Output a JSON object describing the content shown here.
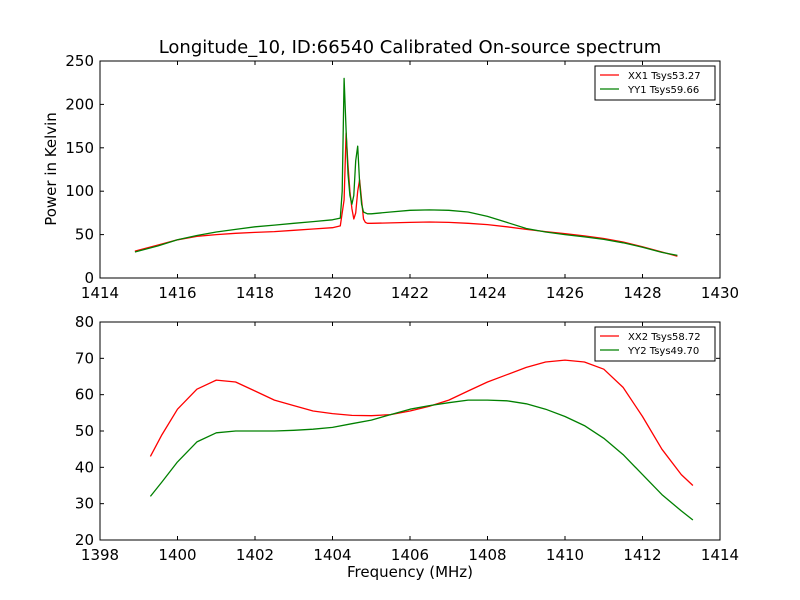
{
  "title": "Longitude_10, ID:66540 Calibrated On-source spectrum",
  "colors": {
    "red": "#ff0000",
    "green": "#008000"
  },
  "chart_data": [
    {
      "type": "line",
      "xlabel": "",
      "ylabel": "Power in Kelvin",
      "xlim": [
        1414,
        1430
      ],
      "ylim": [
        0,
        250
      ],
      "xticks": [
        "1414",
        "1416",
        "1418",
        "1420",
        "1422",
        "1424",
        "1426",
        "1428",
        "1430"
      ],
      "yticks": [
        "0",
        "50",
        "100",
        "150",
        "200",
        "250"
      ],
      "legend_position": "top-right",
      "series": [
        {
          "name": "XX1 Tsys53.27",
          "color": "#ff0000",
          "x": [
            1414.9,
            1415.5,
            1416.0,
            1416.5,
            1417.0,
            1417.5,
            1418.0,
            1418.5,
            1419.0,
            1419.5,
            1420.0,
            1420.2,
            1420.3,
            1420.35,
            1420.4,
            1420.45,
            1420.5,
            1420.55,
            1420.6,
            1420.65,
            1420.7,
            1420.75,
            1420.8,
            1420.85,
            1420.9,
            1421.0,
            1421.5,
            1422.0,
            1422.5,
            1423.0,
            1423.5,
            1424.0,
            1424.5,
            1425.0,
            1425.5,
            1426.0,
            1426.5,
            1427.0,
            1427.5,
            1428.0,
            1428.5,
            1428.9
          ],
          "y": [
            31,
            38,
            44,
            48,
            50,
            51.5,
            52.5,
            53.5,
            55,
            56.5,
            58,
            60,
            90,
            167,
            130,
            100,
            80,
            68,
            75,
            100,
            113,
            90,
            68,
            64,
            63,
            63,
            63.5,
            64,
            64.5,
            64,
            63,
            61.5,
            59,
            56,
            53.5,
            51,
            48.5,
            45.5,
            41.5,
            36,
            30,
            25
          ]
        },
        {
          "name": "YY1 Tsys59.66",
          "color": "#008000",
          "x": [
            1414.9,
            1415.5,
            1416.0,
            1416.5,
            1417.0,
            1417.5,
            1418.0,
            1418.5,
            1419.0,
            1419.5,
            1420.0,
            1420.2,
            1420.25,
            1420.3,
            1420.35,
            1420.4,
            1420.45,
            1420.5,
            1420.55,
            1420.6,
            1420.65,
            1420.7,
            1420.75,
            1420.8,
            1420.9,
            1421.0,
            1421.5,
            1422.0,
            1422.5,
            1423.0,
            1423.5,
            1424.0,
            1424.5,
            1425.0,
            1425.5,
            1426.0,
            1426.5,
            1427.0,
            1427.5,
            1428.0,
            1428.5,
            1428.9
          ],
          "y": [
            30,
            37,
            44,
            49,
            53,
            56,
            59,
            61,
            63,
            65,
            67,
            69,
            100,
            230,
            170,
            120,
            95,
            85,
            95,
            135,
            152,
            110,
            85,
            76,
            74,
            74,
            76,
            78,
            78.5,
            78,
            76,
            71,
            64,
            57,
            53,
            50,
            47.5,
            44.5,
            40.5,
            35.5,
            29.5,
            26
          ]
        }
      ]
    },
    {
      "type": "line",
      "xlabel": "Frequency (MHz)",
      "ylabel": "",
      "xlim": [
        1398,
        1414
      ],
      "ylim": [
        20,
        80
      ],
      "xticks": [
        "1398",
        "1400",
        "1402",
        "1404",
        "1406",
        "1408",
        "1410",
        "1412",
        "1414"
      ],
      "yticks": [
        "20",
        "30",
        "40",
        "50",
        "60",
        "70",
        "80"
      ],
      "legend_position": "top-right",
      "series": [
        {
          "name": "XX2 Tsys58.72",
          "color": "#ff0000",
          "x": [
            1399.3,
            1399.6,
            1400.0,
            1400.5,
            1401.0,
            1401.5,
            1402.0,
            1402.5,
            1403.0,
            1403.5,
            1404.0,
            1404.5,
            1405.0,
            1405.5,
            1406.0,
            1406.5,
            1407.0,
            1407.5,
            1408.0,
            1408.5,
            1409.0,
            1409.5,
            1410.0,
            1410.5,
            1411.0,
            1411.5,
            1412.0,
            1412.5,
            1413.0,
            1413.3
          ],
          "y": [
            43,
            49,
            56,
            61.5,
            64,
            63.5,
            61,
            58.5,
            57,
            55.5,
            54.8,
            54.3,
            54.2,
            54.5,
            55.5,
            56.8,
            58.5,
            61,
            63.5,
            65.5,
            67.5,
            69,
            69.5,
            69,
            67,
            62,
            54,
            45,
            38,
            35
          ]
        },
        {
          "name": "YY2 Tsys49.70",
          "color": "#008000",
          "x": [
            1399.3,
            1399.6,
            1400.0,
            1400.5,
            1401.0,
            1401.5,
            1402.0,
            1402.5,
            1403.0,
            1403.5,
            1404.0,
            1404.5,
            1405.0,
            1405.5,
            1406.0,
            1406.5,
            1407.0,
            1407.5,
            1408.0,
            1408.5,
            1409.0,
            1409.5,
            1410.0,
            1410.5,
            1411.0,
            1411.5,
            1412.0,
            1412.5,
            1413.0,
            1413.3
          ],
          "y": [
            32,
            36,
            41.5,
            47,
            49.5,
            50,
            50,
            50,
            50.2,
            50.5,
            51,
            52,
            53,
            54.5,
            56,
            57,
            57.8,
            58.5,
            58.5,
            58.3,
            57.5,
            56,
            54,
            51.5,
            48,
            43.5,
            38,
            32.5,
            28,
            25.5
          ]
        }
      ]
    }
  ]
}
